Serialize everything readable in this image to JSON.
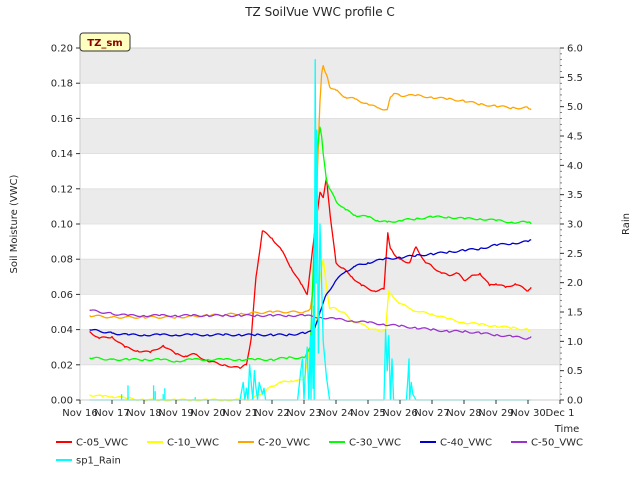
{
  "chart_data": {
    "type": "line",
    "title": "TZ SoilVue VWC profile C",
    "badge": "TZ_sm",
    "xlabel": "Time",
    "ylabel": "Soil Moisture (VWC)",
    "y2label": "Rain",
    "ylim": [
      0,
      0.2
    ],
    "y2lim": [
      0,
      6.0
    ],
    "xlim": [
      16,
      31
    ],
    "yticks": [
      "0.00",
      "0.02",
      "0.04",
      "0.06",
      "0.08",
      "0.10",
      "0.12",
      "0.14",
      "0.16",
      "0.18",
      "0.20"
    ],
    "y2ticks": [
      "0.0",
      "0.5",
      "1.0",
      "1.5",
      "2.0",
      "2.5",
      "3.0",
      "3.5",
      "4.0",
      "4.5",
      "5.0",
      "5.5",
      "6.0"
    ],
    "xticks": [
      "Nov 16",
      "Nov 17",
      "Nov 18",
      "Nov 19",
      "Nov 20",
      "Nov 21",
      "Nov 22",
      "Nov 23",
      "Nov 24",
      "Nov 25",
      "Nov 26",
      "Nov 27",
      "Nov 28",
      "Nov 29",
      "Nov 30",
      "Dec 1"
    ],
    "grid": "horizontal bands",
    "legend_position": "bottom",
    "series": [
      {
        "name": "C-05_VWC",
        "color": "#ff0000",
        "axis": "left",
        "x": [
          16.3,
          16.6,
          17.0,
          17.4,
          17.8,
          18.2,
          18.6,
          19.0,
          19.3,
          19.6,
          20.0,
          20.5,
          21.0,
          21.2,
          21.35,
          21.5,
          21.7,
          22.0,
          22.3,
          22.6,
          22.9,
          23.1,
          23.3,
          23.4,
          23.5,
          23.6,
          23.7,
          23.85,
          24.0,
          24.2,
          24.5,
          24.8,
          25.2,
          25.5,
          25.62,
          25.7,
          25.85,
          26.0,
          26.3,
          26.5,
          26.8,
          27.0,
          27.3,
          27.5,
          27.8,
          28.0,
          28.2,
          28.5,
          28.8,
          29.0,
          29.3,
          29.6,
          30.0,
          30.1
        ],
        "y": [
          0.039,
          0.035,
          0.036,
          0.03,
          0.028,
          0.027,
          0.031,
          0.026,
          0.025,
          0.026,
          0.022,
          0.02,
          0.018,
          0.02,
          0.035,
          0.07,
          0.096,
          0.092,
          0.085,
          0.075,
          0.066,
          0.06,
          0.09,
          0.105,
          0.118,
          0.115,
          0.126,
          0.1,
          0.078,
          0.075,
          0.07,
          0.065,
          0.062,
          0.063,
          0.095,
          0.086,
          0.082,
          0.08,
          0.078,
          0.087,
          0.078,
          0.076,
          0.072,
          0.071,
          0.072,
          0.068,
          0.07,
          0.072,
          0.065,
          0.066,
          0.064,
          0.066,
          0.062,
          0.064
        ]
      },
      {
        "name": "C-10_VWC",
        "color": "#ffff00",
        "axis": "left",
        "x": [
          16.3,
          16.7,
          17.0,
          17.5,
          18.0,
          18.5,
          19.0,
          19.5,
          20.0,
          20.5,
          21.0,
          21.2,
          21.4,
          21.6,
          21.8,
          22.0,
          22.3,
          22.6,
          22.8,
          23.0,
          23.2,
          23.4,
          23.5,
          23.6,
          23.7,
          23.8,
          24.0,
          24.2,
          24.5,
          24.8,
          25.0,
          25.2,
          25.4,
          25.55,
          25.65,
          25.8,
          26.0,
          26.3,
          26.6,
          27.0,
          27.5,
          28.0,
          28.5,
          29.0,
          29.5,
          30.0,
          30.1
        ],
        "y": [
          0.003,
          0.002,
          0.002,
          0.001,
          0.0,
          0.0,
          0.0,
          0.0,
          0.0,
          0.0,
          0.0,
          0.0,
          0.001,
          0.003,
          0.005,
          0.008,
          0.01,
          0.011,
          0.011,
          0.012,
          0.03,
          0.045,
          0.07,
          0.08,
          0.065,
          0.052,
          0.052,
          0.05,
          0.045,
          0.043,
          0.041,
          0.04,
          0.039,
          0.04,
          0.062,
          0.058,
          0.055,
          0.052,
          0.05,
          0.049,
          0.046,
          0.044,
          0.043,
          0.042,
          0.041,
          0.04,
          0.039
        ]
      },
      {
        "name": "C-20_VWC",
        "color": "#ffa500",
        "axis": "left",
        "x": [
          16.3,
          17.0,
          18.0,
          19.0,
          20.0,
          21.0,
          22.0,
          23.0,
          23.2,
          23.3,
          23.4,
          23.5,
          23.55,
          23.6,
          23.7,
          23.8,
          24.0,
          24.3,
          24.6,
          25.0,
          25.3,
          25.6,
          25.7,
          25.8,
          26.0,
          26.5,
          27.0,
          27.5,
          28.0,
          28.5,
          29.0,
          29.5,
          30.0,
          30.1
        ],
        "y": [
          0.048,
          0.047,
          0.047,
          0.047,
          0.048,
          0.049,
          0.05,
          0.05,
          0.052,
          0.065,
          0.12,
          0.17,
          0.185,
          0.19,
          0.185,
          0.178,
          0.176,
          0.172,
          0.171,
          0.168,
          0.166,
          0.165,
          0.172,
          0.174,
          0.173,
          0.173,
          0.172,
          0.171,
          0.17,
          0.168,
          0.167,
          0.166,
          0.166,
          0.165
        ]
      },
      {
        "name": "C-30_VWC",
        "color": "#00ff00",
        "axis": "left",
        "x": [
          16.3,
          17.0,
          17.5,
          18.0,
          18.5,
          19.0,
          19.5,
          20.0,
          20.5,
          21.0,
          21.5,
          22.0,
          22.5,
          23.0,
          23.2,
          23.3,
          23.4,
          23.5,
          23.55,
          23.6,
          23.7,
          23.8,
          24.0,
          24.3,
          24.6,
          25.0,
          25.3,
          25.6,
          26.0,
          26.5,
          27.0,
          27.5,
          28.0,
          28.5,
          29.0,
          29.5,
          30.0,
          30.1
        ],
        "y": [
          0.024,
          0.023,
          0.023,
          0.023,
          0.023,
          0.022,
          0.023,
          0.023,
          0.023,
          0.023,
          0.023,
          0.023,
          0.024,
          0.024,
          0.03,
          0.08,
          0.14,
          0.155,
          0.15,
          0.14,
          0.125,
          0.12,
          0.113,
          0.108,
          0.105,
          0.104,
          0.102,
          0.101,
          0.102,
          0.103,
          0.104,
          0.104,
          0.103,
          0.103,
          0.102,
          0.101,
          0.101,
          0.1
        ]
      },
      {
        "name": "C-40_VWC",
        "color": "#0000cc",
        "axis": "left",
        "x": [
          16.3,
          17.0,
          17.5,
          18.0,
          18.5,
          19.0,
          19.5,
          20.0,
          20.5,
          21.0,
          21.5,
          22.0,
          22.5,
          23.0,
          23.3,
          23.5,
          23.7,
          24.0,
          24.3,
          24.6,
          25.0,
          25.5,
          26.0,
          26.5,
          27.0,
          27.5,
          28.0,
          28.5,
          29.0,
          29.5,
          30.0,
          30.1
        ],
        "y": [
          0.04,
          0.038,
          0.037,
          0.037,
          0.037,
          0.037,
          0.037,
          0.037,
          0.037,
          0.037,
          0.037,
          0.037,
          0.037,
          0.038,
          0.039,
          0.05,
          0.06,
          0.068,
          0.073,
          0.076,
          0.078,
          0.08,
          0.081,
          0.082,
          0.083,
          0.084,
          0.085,
          0.086,
          0.088,
          0.089,
          0.09,
          0.091
        ]
      },
      {
        "name": "C-50_VWC",
        "color": "#9933cc",
        "axis": "left",
        "x": [
          16.3,
          17.0,
          17.5,
          18.0,
          18.5,
          19.0,
          19.5,
          20.0,
          20.5,
          21.0,
          21.5,
          22.0,
          22.5,
          23.0,
          23.5,
          24.0,
          24.5,
          25.0,
          25.5,
          26.0,
          26.5,
          27.0,
          27.5,
          28.0,
          28.5,
          29.0,
          29.5,
          30.0,
          30.1
        ],
        "y": [
          0.051,
          0.049,
          0.048,
          0.048,
          0.048,
          0.048,
          0.048,
          0.048,
          0.048,
          0.048,
          0.048,
          0.048,
          0.048,
          0.048,
          0.047,
          0.046,
          0.045,
          0.044,
          0.043,
          0.042,
          0.041,
          0.04,
          0.039,
          0.039,
          0.038,
          0.037,
          0.036,
          0.035,
          0.036
        ]
      },
      {
        "name": "sp1_Rain",
        "color": "#00ffff",
        "axis": "right",
        "x": [
          16.3,
          21.0,
          21.1,
          21.15,
          21.2,
          21.25,
          21.3,
          21.35,
          21.4,
          21.45,
          21.5,
          21.55,
          21.6,
          21.7,
          21.75,
          21.8,
          22.5,
          22.8,
          22.9,
          22.95,
          23.0,
          23.05,
          23.1,
          23.15,
          23.2,
          23.22,
          23.25,
          23.28,
          23.3,
          23.32,
          23.35,
          23.38,
          23.4,
          23.45,
          23.5,
          23.6,
          23.7,
          23.8,
          24.0,
          25.5,
          25.55,
          25.6,
          25.65,
          25.7,
          25.75,
          25.8,
          26.0,
          26.2,
          26.25,
          26.28,
          26.3,
          26.35,
          26.4,
          26.5,
          30.1
        ],
        "y": [
          0.0,
          0.0,
          0.3,
          0.0,
          0.2,
          0.0,
          0.6,
          0.3,
          0.0,
          0.5,
          0.2,
          0.0,
          0.3,
          0.1,
          0.2,
          0.0,
          0.0,
          0.0,
          0.5,
          0.7,
          0.0,
          0.6,
          0.9,
          0.0,
          1.1,
          0.0,
          1.4,
          0.2,
          1.6,
          0.0,
          5.8,
          2.0,
          4.6,
          0.8,
          3.0,
          1.0,
          0.4,
          0.0,
          0.0,
          0.0,
          1.2,
          0.5,
          1.1,
          0.0,
          0.7,
          0.0,
          0.0,
          0.0,
          0.4,
          0.7,
          0.0,
          0.3,
          0.1,
          0.0,
          0.0
        ]
      }
    ],
    "spikes": [
      {
        "series": "sp1_Rain",
        "x": [
          17.3,
          17.5,
          18.3,
          18.35,
          18.6,
          18.65,
          19.6
        ],
        "y": [
          0.1,
          0.25,
          0.25,
          0.15,
          0.1,
          0.2,
          0.05
        ]
      }
    ]
  }
}
